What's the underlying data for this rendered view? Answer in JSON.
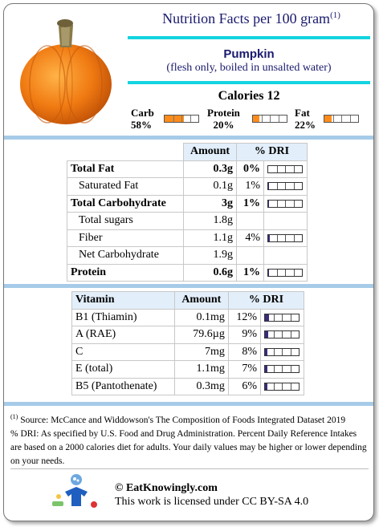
{
  "header": {
    "title": "Nutrition Facts per 100 gram",
    "title_note": "(1)",
    "food_name": "Pumpkin",
    "food_desc": "(flesh only, boiled in unsalted water)",
    "calories": "Calories 12"
  },
  "macros": [
    {
      "label": "Carb",
      "pct": "58%",
      "value": 0.58
    },
    {
      "label": "Protein",
      "pct": "20%",
      "value": 0.2
    },
    {
      "label": "Fat",
      "pct": "22%",
      "value": 0.22
    }
  ],
  "nutrients": {
    "headers": [
      "Amount",
      "% DRI"
    ],
    "rows": [
      {
        "name": "Total Fat",
        "amount": "0.3g",
        "dri": "0%",
        "dri_value": 0.0,
        "bold": true,
        "indent": false,
        "bar": true
      },
      {
        "name": "Saturated Fat",
        "amount": "0.1g",
        "dri": "1%",
        "dri_value": 0.01,
        "bold": false,
        "indent": true,
        "bar": true
      },
      {
        "name": "Total Carbohydrate",
        "amount": "3g",
        "dri": "1%",
        "dri_value": 0.01,
        "bold": true,
        "indent": false,
        "bar": true
      },
      {
        "name": "Total sugars",
        "amount": "1.8g",
        "dri": "",
        "dri_value": null,
        "bold": false,
        "indent": true,
        "bar": false
      },
      {
        "name": "Fiber",
        "amount": "1.1g",
        "dri": "4%",
        "dri_value": 0.04,
        "bold": false,
        "indent": true,
        "bar": true
      },
      {
        "name": "Net Carbohydrate",
        "amount": "1.9g",
        "dri": "",
        "dri_value": null,
        "bold": false,
        "indent": true,
        "bar": false
      },
      {
        "name": "Protein",
        "amount": "0.6g",
        "dri": "1%",
        "dri_value": 0.01,
        "bold": true,
        "indent": false,
        "bar": true
      }
    ]
  },
  "vitamins": {
    "headers": [
      "Vitamin",
      "Amount",
      "% DRI"
    ],
    "rows": [
      {
        "name": "B1 (Thiamin)",
        "amount": "0.1mg",
        "dri": "12%",
        "dri_value": 0.12
      },
      {
        "name": "A (RAE)",
        "amount": "79.6µg",
        "dri": "9%",
        "dri_value": 0.09
      },
      {
        "name": "C",
        "amount": "7mg",
        "dri": "8%",
        "dri_value": 0.08
      },
      {
        "name": "E (total)",
        "amount": "1.1mg",
        "dri": "7%",
        "dri_value": 0.07
      },
      {
        "name": "B5 (Pantothenate)",
        "amount": "0.3mg",
        "dri": "6%",
        "dri_value": 0.06
      }
    ]
  },
  "footer": {
    "note_mark": "(1)",
    "source": "Source: McCance and Widdowson's The Composition of Foods Integrated Dataset 2019",
    "dri_text": "% DRI: As specified by U.S. Food and Drug Administration. Percent Daily Reference Intakes are based on a 2000 calories diet for adults. Your daily values may be higher or lower depending on your needs.",
    "site": "© EatKnowingly.com",
    "license": "This work is licensed under CC BY-SA 4.0"
  },
  "colors": {
    "accent_cyan": "#14d4e0",
    "section_bar": "#a6cbe8",
    "macro_fill": "#ff8c1a",
    "dri_fill": "#3b2a7a",
    "title_color": "#1a1a6e"
  }
}
